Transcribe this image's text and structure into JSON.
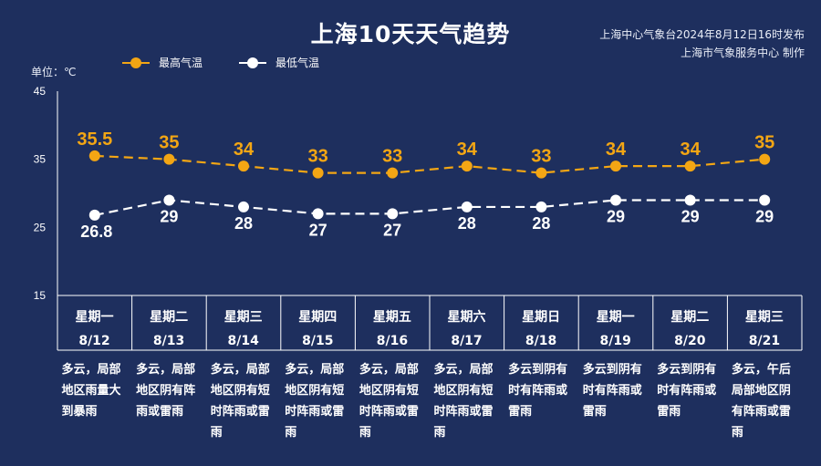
{
  "header": {
    "title": "上海10天天气趋势",
    "source_line1": "上海中心气象台2024年8月12日16时发布",
    "source_line2": "上海市气象服务中心 制作",
    "unit_label": "单位：℃"
  },
  "colors": {
    "background": "#1e2f5e",
    "high": "#f3a614",
    "low": "#ffffff"
  },
  "chart_data": {
    "type": "line",
    "ylabel": "单位：℃",
    "ylim": [
      15,
      45
    ],
    "yticks": [
      "15",
      "25",
      "35",
      "45"
    ],
    "categories": [
      "8/12",
      "8/13",
      "8/14",
      "8/15",
      "8/16",
      "8/17",
      "8/18",
      "8/19",
      "8/20",
      "8/21"
    ],
    "series": [
      {
        "name": "最高气温",
        "values": [
          35.5,
          35,
          34,
          33,
          33,
          34,
          33,
          34,
          34,
          35
        ],
        "labels": [
          "35.5",
          "35",
          "34",
          "33",
          "33",
          "34",
          "33",
          "34",
          "34",
          "35"
        ]
      },
      {
        "name": "最低气温",
        "values": [
          26.8,
          29,
          28,
          27,
          27,
          28,
          28,
          29,
          29,
          29
        ],
        "labels": [
          "26.8",
          "29",
          "28",
          "27",
          "27",
          "28",
          "28",
          "29",
          "29",
          "29"
        ]
      }
    ],
    "legend": "top-left",
    "grid": false
  },
  "days": [
    {
      "weekday": "星期一",
      "date": "8/12",
      "desc": "多云，局部地区雨量大到暴雨"
    },
    {
      "weekday": "星期二",
      "date": "8/13",
      "desc": "多云，局部地区阴有阵雨或雷雨"
    },
    {
      "weekday": "星期三",
      "date": "8/14",
      "desc": "多云，局部地区阴有短时阵雨或雷雨"
    },
    {
      "weekday": "星期四",
      "date": "8/15",
      "desc": "多云，局部地区阴有短时阵雨或雷雨"
    },
    {
      "weekday": "星期五",
      "date": "8/16",
      "desc": "多云，局部地区阴有短时阵雨或雷雨"
    },
    {
      "weekday": "星期六",
      "date": "8/17",
      "desc": "多云，局部地区阴有短时阵雨或雷雨"
    },
    {
      "weekday": "星期日",
      "date": "8/18",
      "desc": "多云到阴有时有阵雨或雷雨"
    },
    {
      "weekday": "星期一",
      "date": "8/19",
      "desc": "多云到阴有时有阵雨或雷雨"
    },
    {
      "weekday": "星期二",
      "date": "8/20",
      "desc": "多云到阴有时有阵雨或雷雨"
    },
    {
      "weekday": "星期三",
      "date": "8/21",
      "desc": "多云，午后局部地区阴有阵雨或雷雨"
    }
  ]
}
